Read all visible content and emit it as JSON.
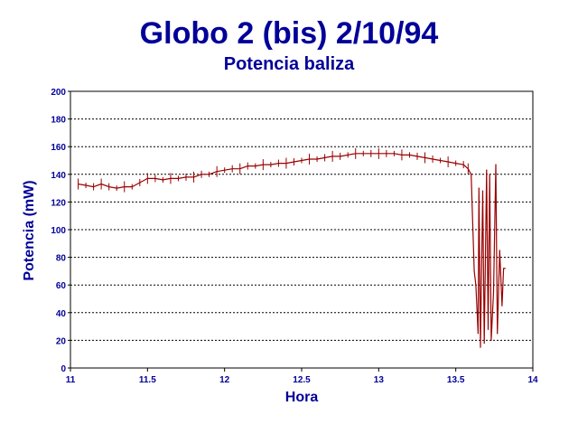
{
  "chart_data": {
    "type": "line",
    "title": "Globo 2 (bis) 2/10/94",
    "subtitle": "Potencia baliza",
    "xlabel": "Hora",
    "ylabel": "Potencia (mW)",
    "xlim": [
      11,
      14
    ],
    "ylim": [
      0,
      200
    ],
    "x_ticks": [
      "11",
      "11.5",
      "12",
      "12.5",
      "13",
      "13.5",
      "14"
    ],
    "y_ticks": [
      "0",
      "20",
      "40",
      "60",
      "80",
      "100",
      "120",
      "140",
      "160",
      "180",
      "200"
    ],
    "grid": "horizontal dotted",
    "series": [
      {
        "color": "#990000",
        "points": [
          [
            11.05,
            133
          ],
          [
            11.1,
            132
          ],
          [
            11.15,
            131
          ],
          [
            11.2,
            133
          ],
          [
            11.25,
            131
          ],
          [
            11.3,
            130
          ],
          [
            11.35,
            131
          ],
          [
            11.4,
            131
          ],
          [
            11.45,
            134
          ],
          [
            11.5,
            137
          ],
          [
            11.55,
            137
          ],
          [
            11.6,
            136
          ],
          [
            11.65,
            137
          ],
          [
            11.7,
            137
          ],
          [
            11.75,
            138
          ],
          [
            11.8,
            138
          ],
          [
            11.85,
            140
          ],
          [
            11.9,
            140
          ],
          [
            11.95,
            142
          ],
          [
            12.0,
            143
          ],
          [
            12.05,
            144
          ],
          [
            12.1,
            144
          ],
          [
            12.15,
            146
          ],
          [
            12.2,
            146
          ],
          [
            12.25,
            147
          ],
          [
            12.3,
            147
          ],
          [
            12.35,
            148
          ],
          [
            12.4,
            148
          ],
          [
            12.45,
            149
          ],
          [
            12.5,
            150
          ],
          [
            12.55,
            151
          ],
          [
            12.6,
            151
          ],
          [
            12.65,
            152
          ],
          [
            12.7,
            153
          ],
          [
            12.75,
            153
          ],
          [
            12.8,
            154
          ],
          [
            12.85,
            155
          ],
          [
            12.9,
            155
          ],
          [
            12.95,
            155
          ],
          [
            13.0,
            155
          ],
          [
            13.05,
            155
          ],
          [
            13.1,
            155
          ],
          [
            13.15,
            154
          ],
          [
            13.2,
            154
          ],
          [
            13.25,
            153
          ],
          [
            13.3,
            152
          ],
          [
            13.35,
            151
          ],
          [
            13.4,
            150
          ],
          [
            13.45,
            149
          ],
          [
            13.5,
            148
          ],
          [
            13.55,
            147
          ],
          [
            13.58,
            144
          ],
          [
            13.6,
            140
          ],
          [
            13.62,
            70
          ],
          [
            13.63,
            60
          ],
          [
            13.645,
            25
          ],
          [
            13.65,
            130
          ],
          [
            13.66,
            15
          ],
          [
            13.675,
            128
          ],
          [
            13.685,
            18
          ],
          [
            13.7,
            143
          ],
          [
            13.71,
            28
          ],
          [
            13.72,
            140
          ],
          [
            13.73,
            20
          ],
          [
            13.745,
            55
          ],
          [
            13.76,
            147
          ],
          [
            13.77,
            25
          ],
          [
            13.785,
            85
          ],
          [
            13.8,
            45
          ],
          [
            13.81,
            72
          ],
          [
            13.82,
            72
          ]
        ]
      }
    ]
  }
}
